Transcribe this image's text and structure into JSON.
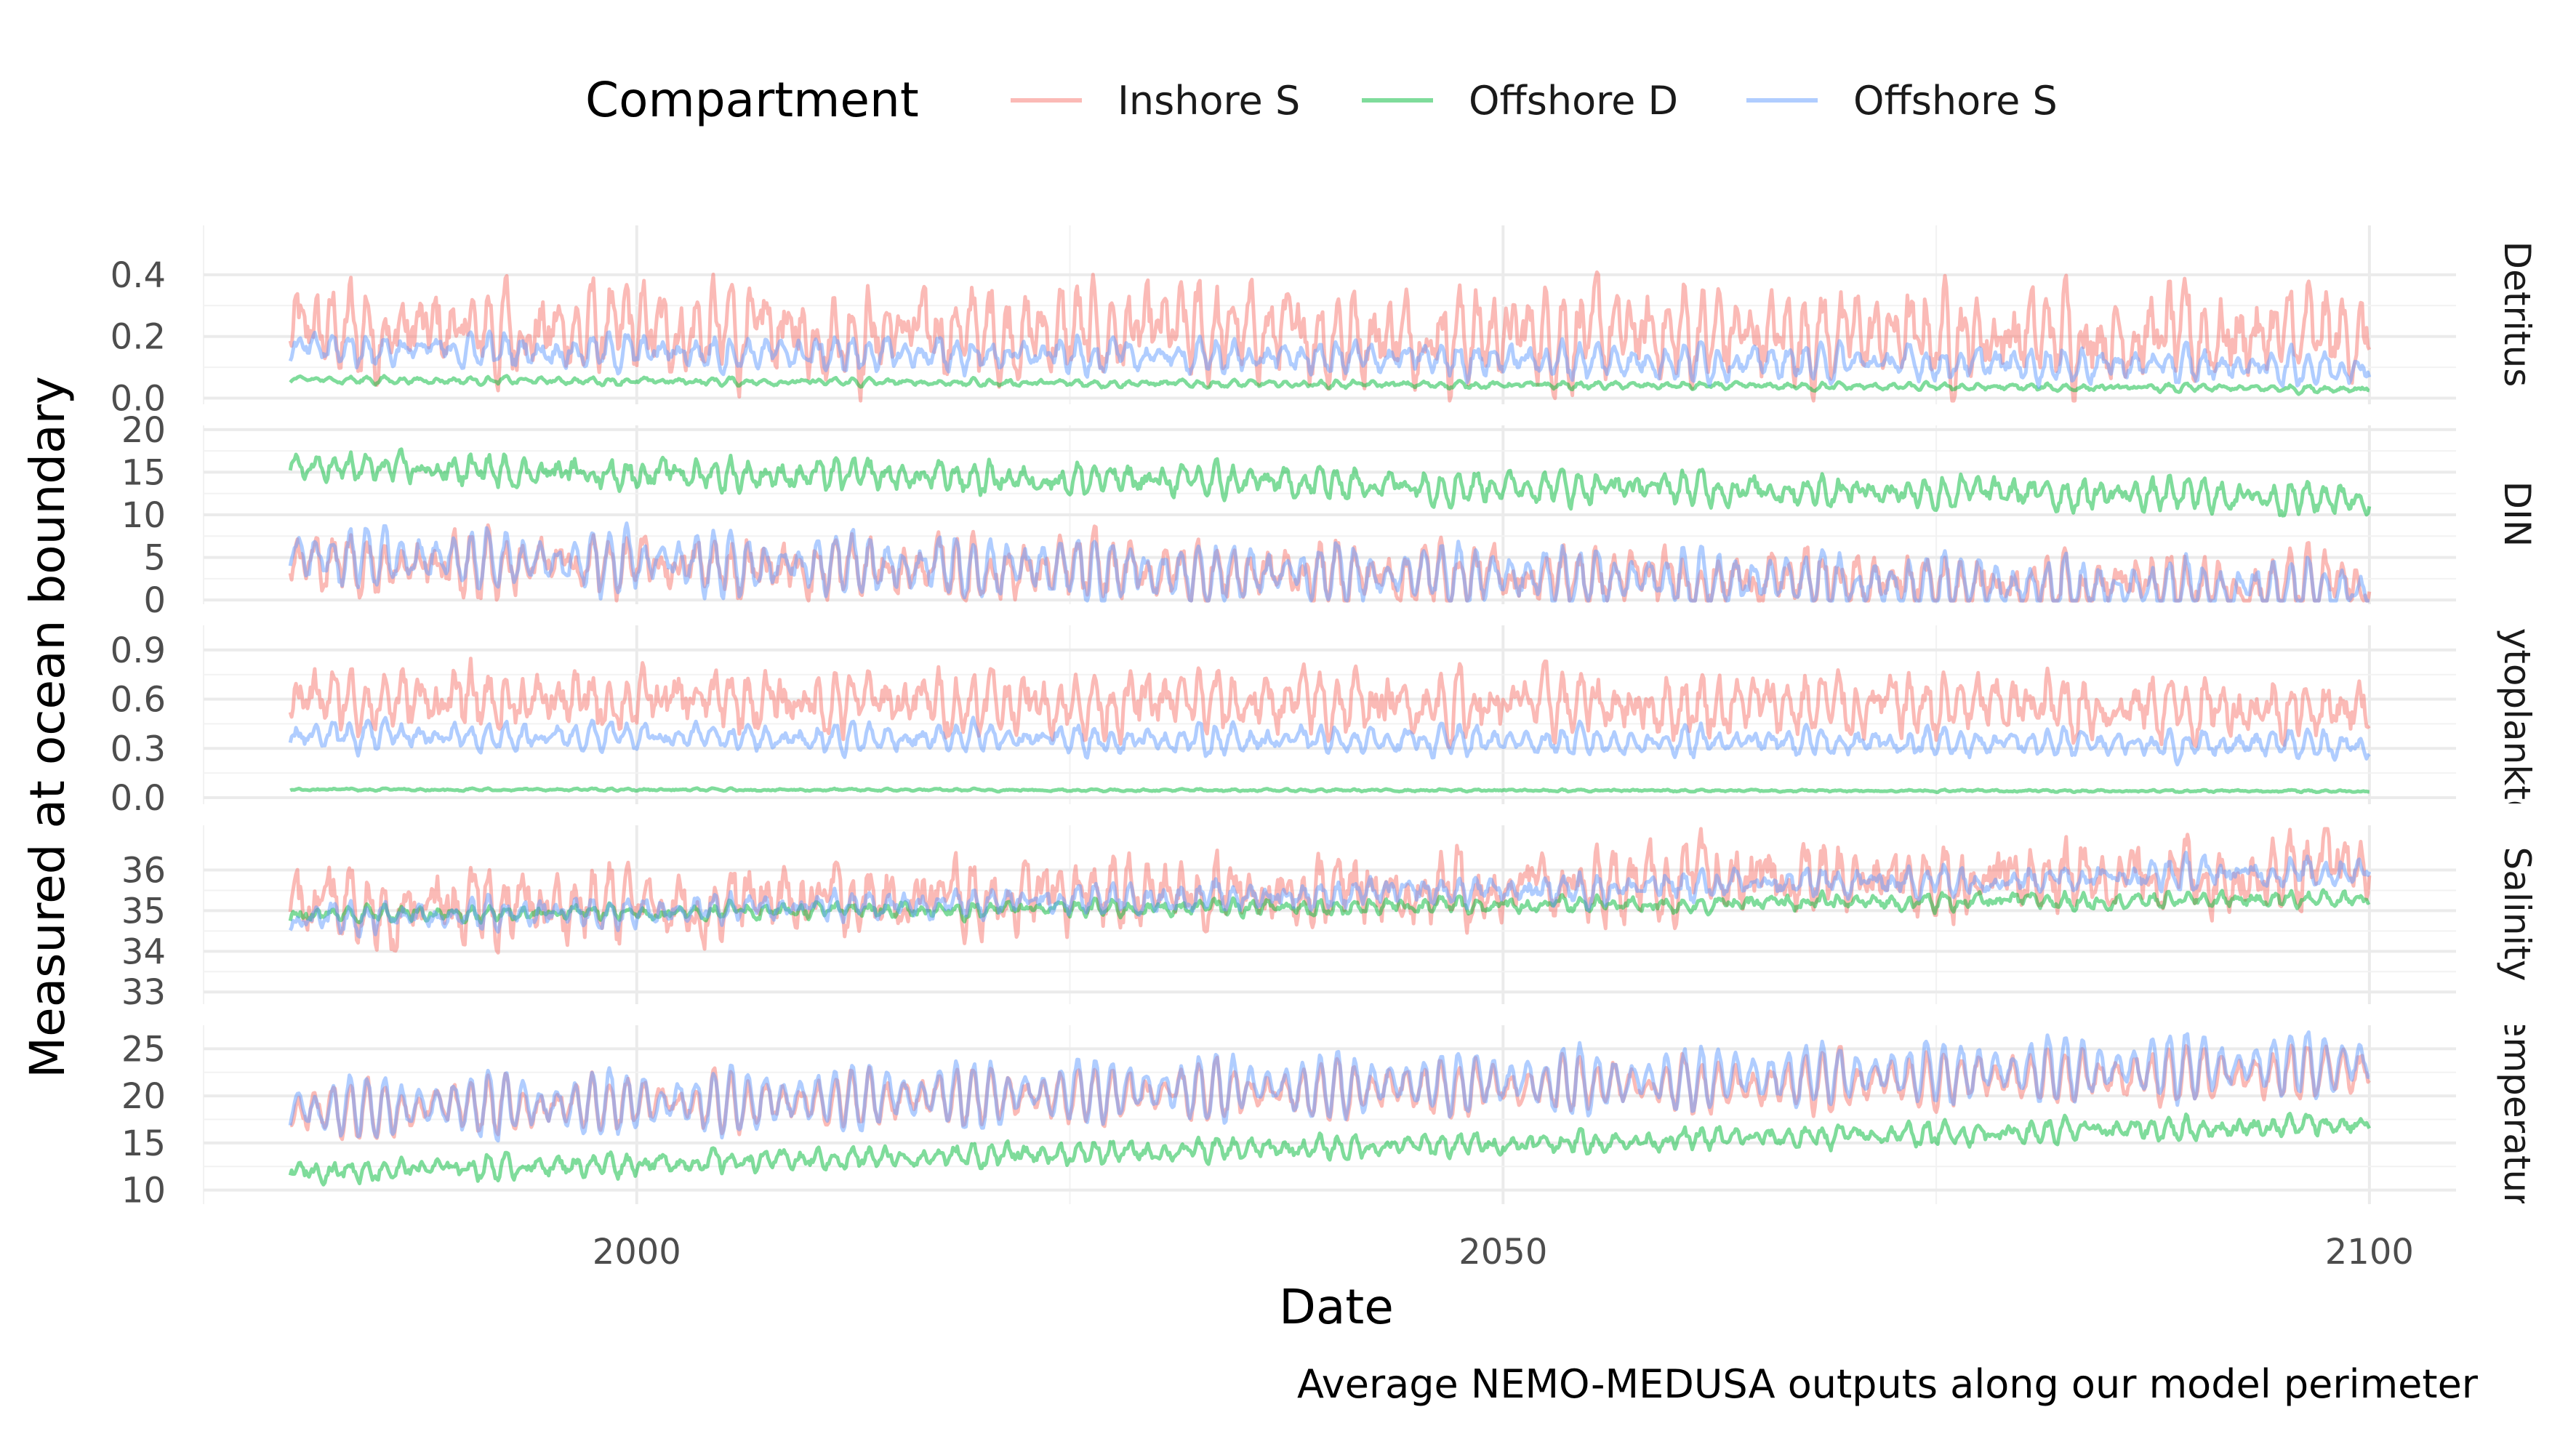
{
  "chart_data": {
    "type": "line",
    "xlabel": "Date",
    "ylabel": "Measured at ocean boundary",
    "caption": "Average NEMO-MEDUSA outputs along our model perimeter",
    "x_range": [
      1975,
      2105
    ],
    "x_start": 1980,
    "x_end": 2100,
    "x_ticks": [
      "2000",
      "2050",
      "2100"
    ],
    "x_tick_values": [
      2000,
      2050,
      2100
    ],
    "legend": {
      "title": "Compartment",
      "position": "top",
      "entries": [
        "Inshore S",
        "Offshore D",
        "Offshore S"
      ]
    },
    "colors": {
      "Inshore S": "#F8766D",
      "Offshore D": "#00BA38",
      "Offshore S": "#619CFF"
    },
    "facets": [
      {
        "label": "Detritus",
        "ylim": [
          -0.02,
          0.56
        ],
        "y_ticks": [
          "0.0",
          "0.2",
          "0.4"
        ],
        "y_tick_values": [
          0,
          0.2,
          0.4
        ],
        "series": [
          {
            "name": "Inshore S",
            "mean_start": 0.22,
            "mean_end": 0.2,
            "amp": 0.12,
            "noise": 0.07
          },
          {
            "name": "Offshore D",
            "mean_start": 0.06,
            "mean_end": 0.03,
            "amp": 0.01,
            "noise": 0.005
          },
          {
            "name": "Offshore S",
            "mean_start": 0.16,
            "mean_end": 0.1,
            "amp": 0.05,
            "noise": 0.02
          }
        ]
      },
      {
        "label": "DIN",
        "ylim": [
          -0.5,
          20.5
        ],
        "y_ticks": [
          "0",
          "5",
          "10",
          "15",
          "20"
        ],
        "y_tick_values": [
          0,
          5,
          10,
          15,
          20
        ],
        "series": [
          {
            "name": "Inshore S",
            "mean_start": 4.5,
            "mean_end": 1.5,
            "amp": 3,
            "noise": 1.5
          },
          {
            "name": "Offshore D",
            "mean_start": 15.5,
            "mean_end": 12,
            "amp": 1.5,
            "noise": 0.8
          },
          {
            "name": "Offshore S",
            "mean_start": 5,
            "mean_end": 1,
            "amp": 3.5,
            "noise": 0.8
          }
        ]
      },
      {
        "label": "Phytoplankton",
        "ylim": [
          -0.04,
          1.05
        ],
        "y_ticks": [
          "0.0",
          "0.3",
          "0.6",
          "0.9"
        ],
        "y_tick_values": [
          0,
          0.3,
          0.6,
          0.9
        ],
        "series": [
          {
            "name": "Inshore S",
            "mean_start": 0.6,
            "mean_end": 0.55,
            "amp": 0.15,
            "noise": 0.09
          },
          {
            "name": "Offshore D",
            "mean_start": 0.05,
            "mean_end": 0.04,
            "amp": 0.005,
            "noise": 0.004
          },
          {
            "name": "Offshore S",
            "mean_start": 0.38,
            "mean_end": 0.32,
            "amp": 0.08,
            "noise": 0.03
          }
        ]
      },
      {
        "label": "Salinity",
        "ylim": [
          32.7,
          37.1
        ],
        "y_ticks": [
          "33",
          "34",
          "35",
          "36"
        ],
        "y_tick_values": [
          33,
          34,
          35,
          36
        ],
        "series": [
          {
            "name": "Inshore S",
            "mean_start": 35,
            "mean_end": 36,
            "amp": 0.6,
            "noise": 0.45
          },
          {
            "name": "Offshore D",
            "mean_start": 34.9,
            "mean_end": 35.3,
            "amp": 0.15,
            "noise": 0.1
          },
          {
            "name": "Offshore S",
            "mean_start": 34.8,
            "mean_end": 36,
            "amp": 0.3,
            "noise": 0.15
          }
        ]
      },
      {
        "label": "Temperature",
        "ylim": [
          8.5,
          27.5
        ],
        "y_ticks": [
          "10",
          "15",
          "20",
          "25"
        ],
        "y_tick_values": [
          10,
          15,
          20,
          25
        ],
        "series": [
          {
            "name": "Inshore S",
            "mean_start": 18.5,
            "mean_end": 22.5,
            "amp": 3,
            "noise": 0.7
          },
          {
            "name": "Offshore D",
            "mean_start": 12,
            "mean_end": 17,
            "amp": 1,
            "noise": 0.5
          },
          {
            "name": "Offshore S",
            "mean_start": 18.5,
            "mean_end": 23.5,
            "amp": 3.5,
            "noise": 0.5
          }
        ]
      }
    ]
  }
}
